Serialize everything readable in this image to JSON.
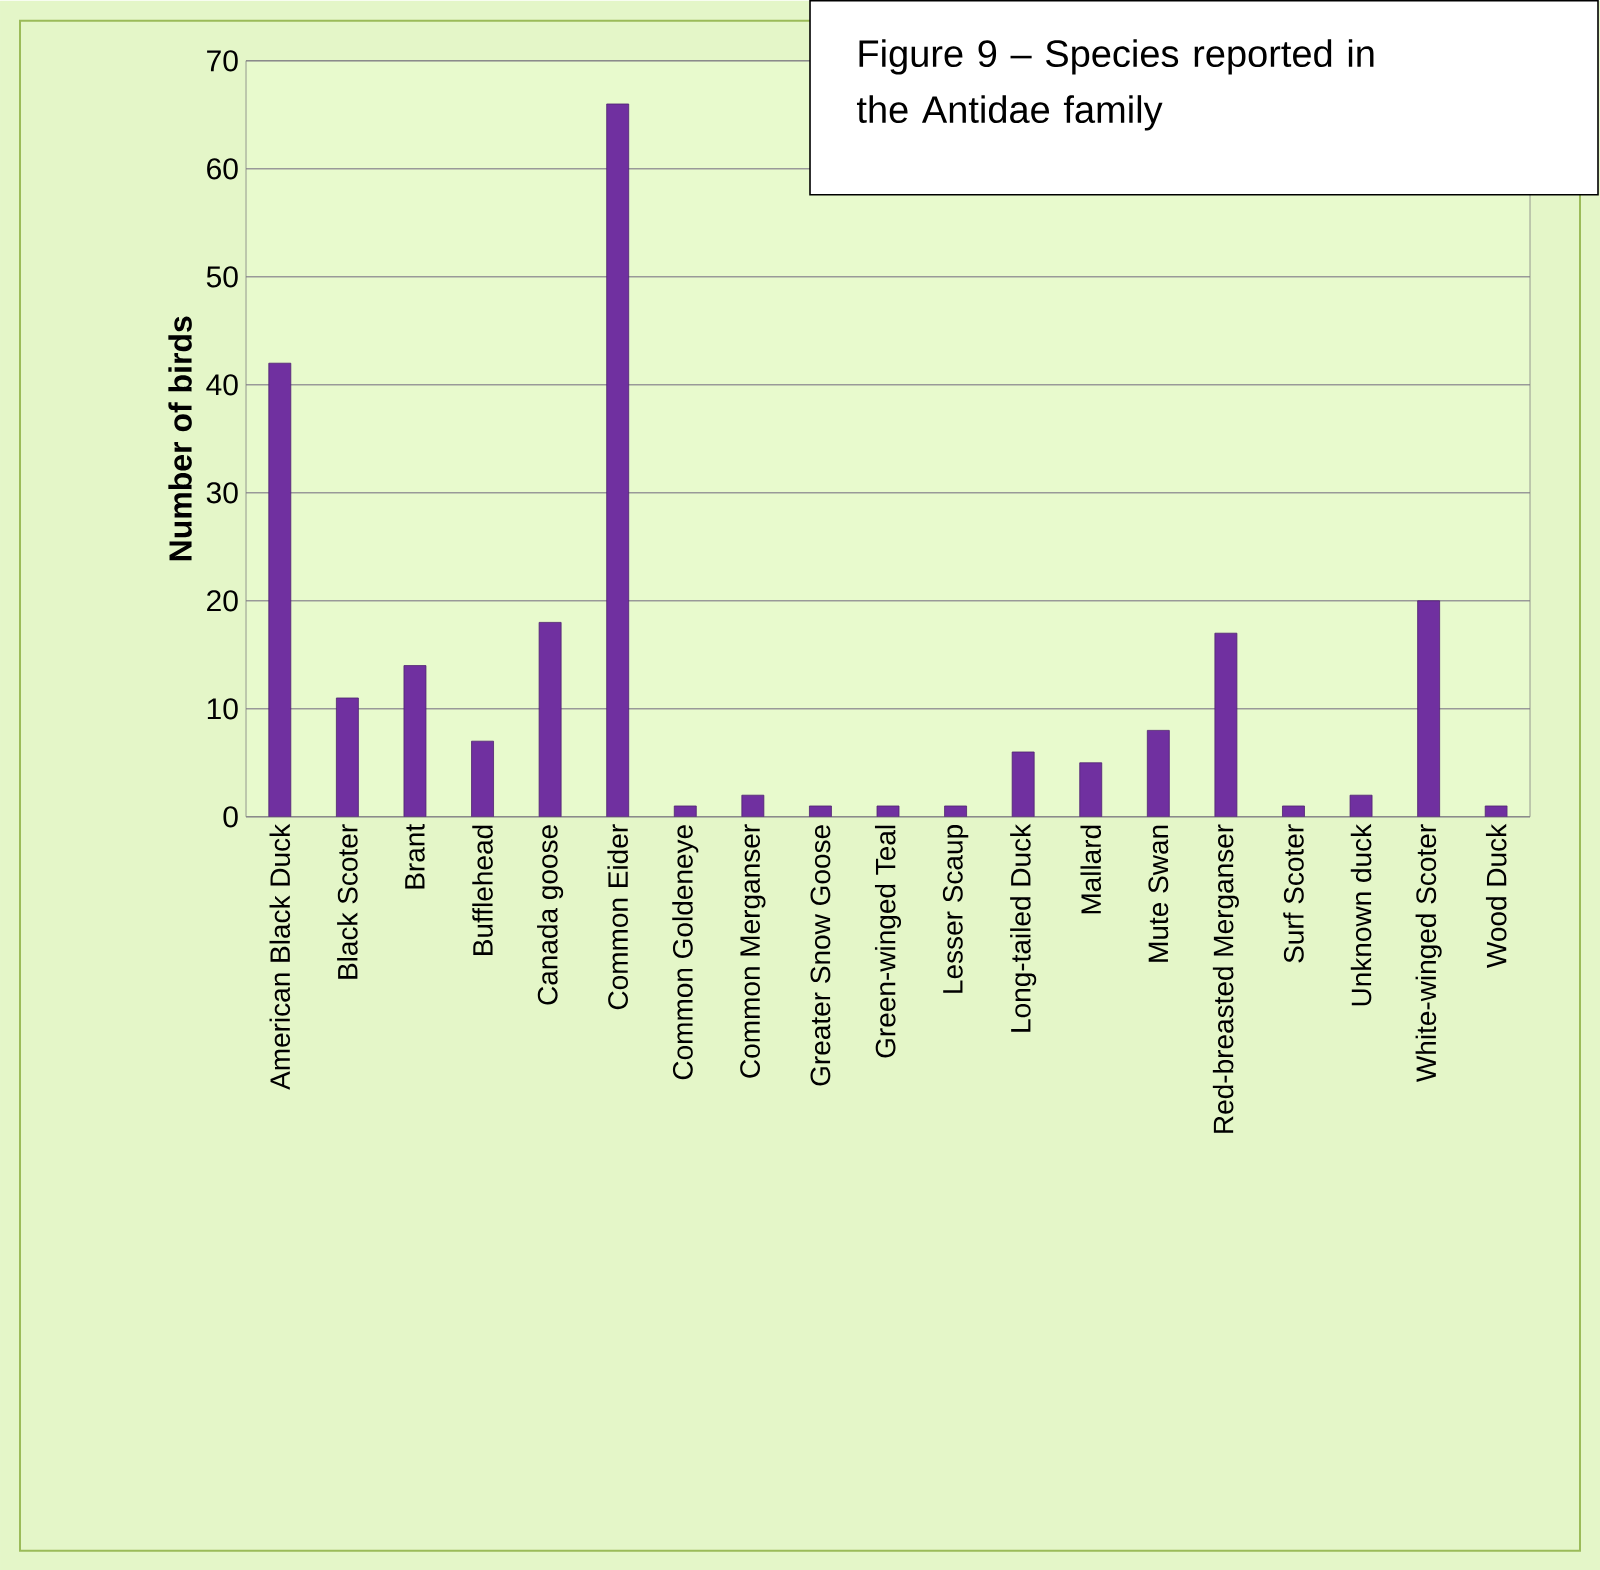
{
  "chart_data": {
    "type": "bar",
    "title": "Figure 9 – Species reported in the Antidae family",
    "ylabel": "Number of birds",
    "categories": [
      "American Black Duck",
      "Black Scoter",
      "Brant",
      "Bufflehead",
      "Canada goose",
      "Common Eider",
      "Common Goldeneye",
      "Common Merganser",
      "Greater Snow Goose",
      "Green-winged Teal",
      "Lesser Scaup",
      "Long-tailed Duck",
      "Mallard",
      "Mute Swan",
      "Red-breasted Merganser",
      "Surf Scoter",
      "Unknown duck",
      "White-winged Scoter",
      "Wood Duck"
    ],
    "values": [
      42,
      11,
      14,
      7,
      18,
      66,
      1,
      2,
      1,
      1,
      1,
      6,
      5,
      8,
      17,
      1,
      2,
      20,
      1
    ],
    "color": "#7030a0",
    "ylim": [
      0,
      70
    ],
    "yticks": [
      0,
      10,
      20,
      30,
      40,
      50,
      60,
      70
    ],
    "grid": "y"
  }
}
